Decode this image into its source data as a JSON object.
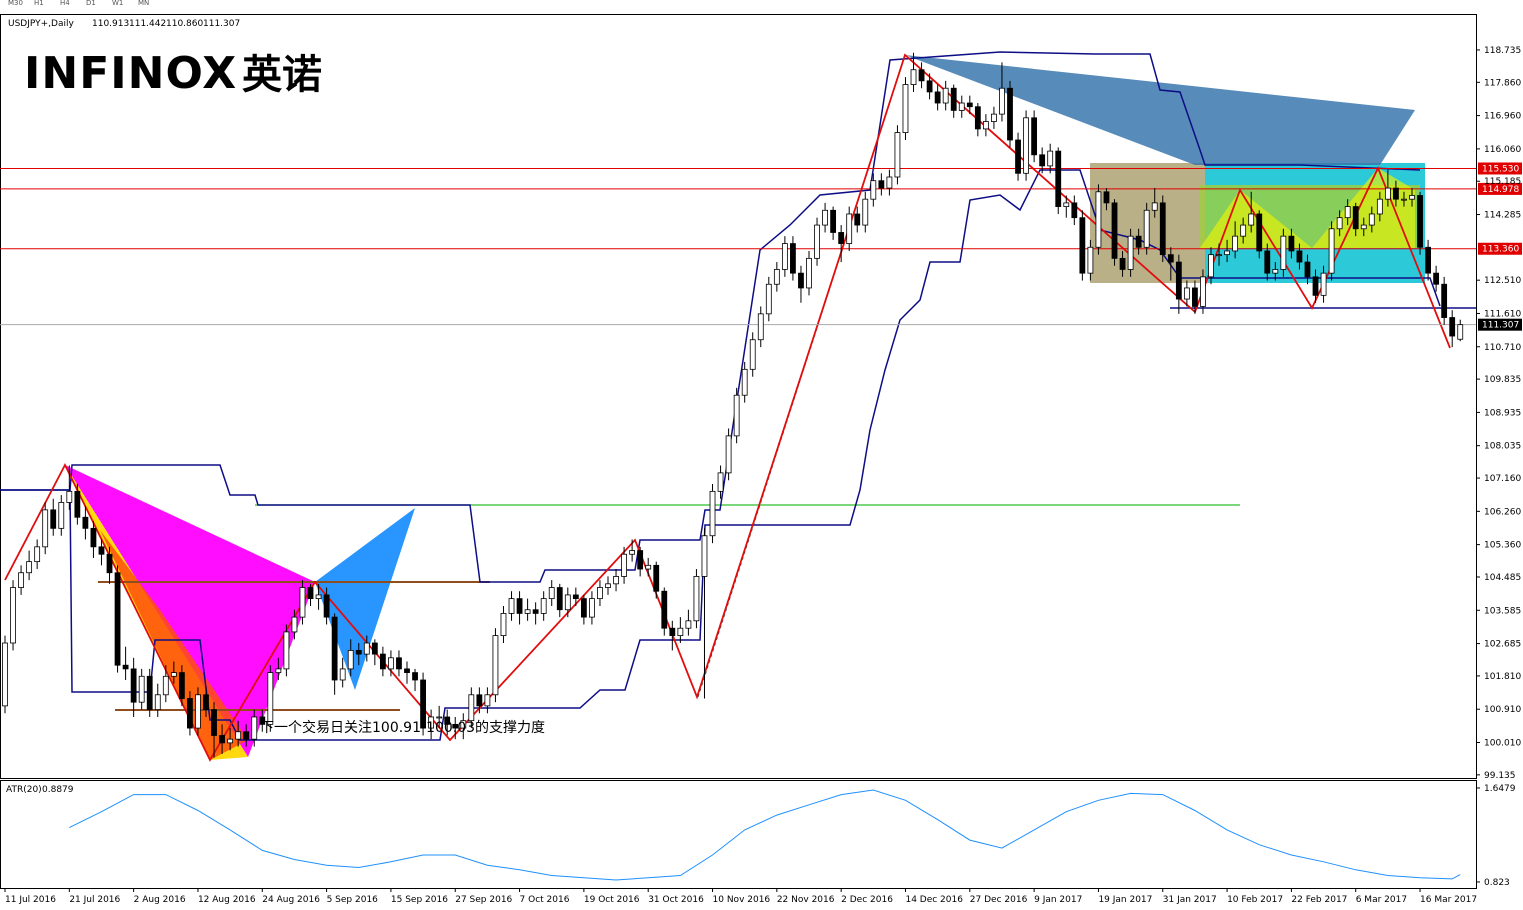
{
  "chart_data": {
    "type": "candlestick",
    "symbol": "USDJPY+,Daily",
    "ohlc_text": [
      "110.913",
      "111.442",
      "110.860",
      "111.307"
    ],
    "logo": "INFINOX",
    "logo_cn": "英诺",
    "timeframes": [
      "M30",
      "H1",
      "H4",
      "D1",
      "W1",
      "MN"
    ],
    "annotation": "下一个交易日关注100.91-100.03的支撑力度",
    "categories": [
      "11 Jul 2016",
      null,
      null,
      null,
      null,
      null,
      null,
      null,
      "21 Jul 2016",
      null,
      null,
      null,
      null,
      null,
      null,
      null,
      "2 Aug 2016",
      null,
      null,
      null,
      null,
      null,
      null,
      null,
      "12 Aug 2016",
      null,
      null,
      null,
      null,
      null,
      null,
      null,
      "24 Aug 2016",
      null,
      null,
      null,
      null,
      null,
      null,
      null,
      "5 Sep 2016",
      null,
      null,
      null,
      null,
      null,
      null,
      null,
      "15 Sep 2016",
      null,
      null,
      null,
      null,
      null,
      null,
      null,
      "27 Sep 2016",
      null,
      null,
      null,
      null,
      null,
      null,
      null,
      "7 Oct 2016",
      null,
      null,
      null,
      null,
      null,
      null,
      null,
      "19 Oct 2016",
      null,
      null,
      null,
      null,
      null,
      null,
      null,
      "31 Oct 2016",
      null,
      null,
      null,
      null,
      null,
      null,
      null,
      "10 Nov 2016",
      null,
      null,
      null,
      null,
      null,
      null,
      null,
      "22 Nov 2016",
      null,
      null,
      null,
      null,
      null,
      null,
      null,
      "2 Dec 2016",
      null,
      null,
      null,
      null,
      null,
      null,
      null,
      "14 Dec 2016",
      null,
      null,
      null,
      null,
      null,
      null,
      null,
      "27 Dec 2016",
      null,
      null,
      null,
      null,
      null,
      null,
      null,
      "9 Jan 2017",
      null,
      null,
      null,
      null,
      null,
      null,
      null,
      "19 Jan 2017",
      null,
      null,
      null,
      null,
      null,
      null,
      null,
      "31 Jan 2017",
      null,
      null,
      null,
      null,
      null,
      null,
      null,
      "10 Feb 2017",
      null,
      null,
      null,
      null,
      null,
      null,
      null,
      "22 Feb 2017",
      null,
      null,
      null,
      null,
      null,
      null,
      null,
      "6 Mar 2017",
      null,
      null,
      null,
      null,
      null,
      null,
      null,
      "16 Mar 2017",
      null,
      null,
      null,
      null,
      null
    ],
    "candles": [
      [
        101.0,
        102.9,
        100.8,
        102.7
      ],
      [
        102.7,
        104.4,
        102.5,
        104.2
      ],
      [
        104.2,
        104.8,
        104.0,
        104.6
      ],
      [
        104.6,
        105.2,
        104.4,
        104.9
      ],
      [
        104.9,
        105.5,
        104.7,
        105.3
      ],
      [
        105.3,
        106.5,
        105.1,
        106.3
      ],
      [
        106.3,
        106.6,
        105.6,
        105.8
      ],
      [
        105.8,
        106.7,
        105.6,
        106.5
      ],
      [
        106.5,
        107.5,
        106.3,
        106.8
      ],
      [
        106.8,
        107.0,
        105.9,
        106.1
      ],
      [
        106.1,
        106.4,
        105.5,
        105.8
      ],
      [
        105.8,
        106.0,
        105.0,
        105.3
      ],
      [
        105.3,
        105.5,
        104.8,
        105.1
      ],
      [
        105.1,
        105.3,
        104.3,
        104.6
      ],
      [
        104.6,
        104.8,
        101.9,
        102.1
      ],
      [
        102.1,
        102.6,
        101.7,
        102.0
      ],
      [
        102.0,
        102.3,
        100.7,
        101.1
      ],
      [
        101.1,
        102.0,
        100.9,
        101.8
      ],
      [
        101.8,
        102.0,
        100.7,
        100.9
      ],
      [
        100.9,
        101.6,
        100.7,
        101.3
      ],
      [
        101.3,
        102.1,
        101.1,
        101.8
      ],
      [
        101.8,
        102.2,
        101.6,
        101.9
      ],
      [
        101.9,
        102.1,
        101.0,
        101.2
      ],
      [
        101.2,
        101.4,
        100.2,
        100.4
      ],
      [
        100.4,
        101.5,
        100.2,
        101.3
      ],
      [
        101.3,
        101.5,
        100.7,
        100.9
      ],
      [
        100.9,
        101.1,
        99.6,
        100.2
      ],
      [
        100.2,
        100.5,
        99.7,
        100.0
      ],
      [
        100.0,
        100.4,
        99.8,
        100.1
      ],
      [
        100.1,
        100.6,
        99.9,
        100.3
      ],
      [
        100.3,
        100.5,
        99.9,
        100.1
      ],
      [
        100.1,
        100.9,
        99.9,
        100.7
      ],
      [
        100.7,
        100.9,
        100.3,
        100.5
      ],
      [
        100.5,
        102.1,
        100.3,
        101.9
      ],
      [
        101.9,
        102.3,
        101.7,
        102.0
      ],
      [
        102.0,
        103.2,
        101.8,
        103.0
      ],
      [
        103.0,
        103.6,
        102.8,
        103.4
      ],
      [
        103.4,
        104.4,
        103.2,
        104.2
      ],
      [
        104.2,
        104.3,
        103.7,
        103.9
      ],
      [
        103.9,
        104.3,
        103.6,
        104.0
      ],
      [
        104.0,
        104.2,
        103.2,
        103.4
      ],
      [
        103.4,
        103.5,
        101.3,
        101.7
      ],
      [
        101.7,
        102.3,
        101.5,
        102.0
      ],
      [
        102.0,
        102.8,
        101.8,
        102.5
      ],
      [
        102.5,
        102.7,
        102.1,
        102.4
      ],
      [
        102.4,
        102.9,
        102.2,
        102.7
      ],
      [
        102.7,
        102.8,
        102.1,
        102.4
      ],
      [
        102.4,
        102.6,
        101.8,
        102.0
      ],
      [
        102.0,
        102.5,
        101.8,
        102.3
      ],
      [
        102.3,
        102.5,
        101.8,
        102.0
      ],
      [
        102.0,
        102.2,
        101.6,
        101.9
      ],
      [
        101.9,
        102.0,
        101.4,
        101.7
      ],
      [
        101.7,
        101.9,
        100.2,
        100.4
      ],
      [
        100.4,
        100.9,
        100.1,
        100.7
      ],
      [
        100.7,
        101.0,
        100.4,
        100.7
      ],
      [
        100.7,
        100.9,
        100.2,
        100.5
      ],
      [
        100.5,
        100.7,
        100.1,
        100.4
      ],
      [
        100.4,
        100.8,
        100.1,
        100.6
      ],
      [
        100.6,
        101.5,
        100.4,
        101.3
      ],
      [
        101.3,
        101.5,
        100.8,
        101.0
      ],
      [
        101.0,
        101.5,
        100.8,
        101.3
      ],
      [
        101.3,
        103.1,
        101.1,
        102.9
      ],
      [
        102.9,
        103.7,
        102.7,
        103.5
      ],
      [
        103.5,
        104.1,
        103.3,
        103.9
      ],
      [
        103.9,
        104.1,
        103.2,
        103.5
      ],
      [
        103.5,
        103.9,
        103.3,
        103.6
      ],
      [
        103.6,
        103.8,
        103.2,
        103.5
      ],
      [
        103.5,
        104.1,
        103.3,
        103.9
      ],
      [
        103.9,
        104.4,
        103.7,
        104.2
      ],
      [
        104.2,
        104.3,
        103.4,
        103.6
      ],
      [
        103.6,
        104.2,
        103.4,
        104.0
      ],
      [
        104.0,
        104.2,
        103.7,
        103.9
      ],
      [
        103.9,
        104.0,
        103.2,
        103.4
      ],
      [
        103.4,
        104.1,
        103.2,
        103.9
      ],
      [
        103.9,
        104.4,
        103.7,
        104.2
      ],
      [
        104.2,
        104.5,
        104.0,
        104.3
      ],
      [
        104.3,
        104.7,
        104.1,
        104.5
      ],
      [
        104.5,
        105.3,
        104.3,
        105.1
      ],
      [
        105.1,
        105.5,
        104.9,
        105.2
      ],
      [
        105.2,
        105.3,
        104.5,
        104.7
      ],
      [
        104.7,
        105.0,
        104.5,
        104.8
      ],
      [
        104.8,
        104.9,
        103.9,
        104.1
      ],
      [
        104.1,
        104.2,
        102.9,
        103.1
      ],
      [
        103.1,
        103.3,
        102.5,
        102.9
      ],
      [
        102.9,
        103.4,
        102.7,
        103.1
      ],
      [
        103.1,
        103.6,
        102.9,
        103.3
      ],
      [
        103.3,
        104.7,
        103.1,
        104.5
      ],
      [
        104.5,
        105.8,
        101.2,
        105.6
      ],
      [
        105.6,
        107.0,
        105.4,
        106.8
      ],
      [
        106.8,
        107.5,
        106.6,
        107.3
      ],
      [
        107.3,
        108.5,
        107.1,
        108.3
      ],
      [
        108.3,
        109.6,
        108.1,
        109.4
      ],
      [
        109.4,
        110.3,
        109.2,
        110.1
      ],
      [
        110.1,
        111.1,
        109.9,
        110.9
      ],
      [
        110.9,
        111.8,
        110.7,
        111.6
      ],
      [
        111.6,
        112.6,
        111.4,
        112.4
      ],
      [
        112.4,
        113.0,
        112.2,
        112.8
      ],
      [
        112.8,
        113.7,
        112.6,
        113.5
      ],
      [
        113.5,
        113.7,
        112.5,
        112.7
      ],
      [
        112.7,
        112.9,
        111.9,
        112.3
      ],
      [
        112.3,
        113.3,
        112.1,
        113.1
      ],
      [
        113.1,
        114.2,
        112.9,
        114.0
      ],
      [
        114.0,
        114.6,
        113.8,
        114.4
      ],
      [
        114.4,
        114.5,
        113.6,
        113.8
      ],
      [
        113.8,
        114.0,
        113.0,
        113.5
      ],
      [
        113.5,
        114.5,
        113.3,
        114.3
      ],
      [
        114.3,
        114.5,
        113.8,
        114.0
      ],
      [
        114.0,
        114.9,
        113.8,
        114.7
      ],
      [
        114.7,
        115.4,
        114.5,
        115.2
      ],
      [
        115.2,
        115.4,
        114.8,
        115.0
      ],
      [
        115.0,
        115.5,
        114.8,
        115.3
      ],
      [
        115.3,
        116.7,
        115.1,
        116.5
      ],
      [
        116.5,
        118.0,
        116.3,
        117.8
      ],
      [
        117.8,
        118.66,
        117.6,
        118.2
      ],
      [
        118.2,
        118.4,
        117.7,
        117.9
      ],
      [
        117.9,
        118.1,
        117.4,
        117.6
      ],
      [
        117.6,
        117.8,
        117.1,
        117.3
      ],
      [
        117.3,
        117.9,
        117.1,
        117.7
      ],
      [
        117.7,
        117.8,
        116.9,
        117.1
      ],
      [
        117.1,
        117.5,
        116.9,
        117.3
      ],
      [
        117.3,
        117.5,
        117.0,
        117.2
      ],
      [
        117.2,
        117.3,
        116.4,
        116.6
      ],
      [
        116.6,
        117.0,
        116.4,
        116.8
      ],
      [
        116.8,
        117.2,
        116.6,
        117.0
      ],
      [
        117.0,
        118.4,
        116.8,
        117.7
      ],
      [
        117.7,
        117.9,
        116.1,
        116.3
      ],
      [
        116.3,
        116.5,
        115.2,
        115.4
      ],
      [
        115.4,
        117.1,
        115.2,
        116.9
      ],
      [
        116.9,
        117.1,
        115.7,
        115.9
      ],
      [
        115.9,
        116.1,
        115.4,
        115.6
      ],
      [
        115.6,
        116.2,
        115.4,
        116.0
      ],
      [
        116.0,
        116.1,
        114.3,
        114.5
      ],
      [
        114.5,
        114.8,
        114.2,
        114.6
      ],
      [
        114.6,
        114.8,
        114.0,
        114.2
      ],
      [
        114.2,
        114.4,
        112.5,
        112.7
      ],
      [
        112.7,
        113.6,
        112.5,
        113.4
      ],
      [
        113.4,
        115.1,
        113.2,
        114.9
      ],
      [
        114.9,
        115.0,
        114.4,
        114.6
      ],
      [
        114.6,
        114.7,
        112.9,
        113.1
      ],
      [
        113.1,
        113.3,
        112.6,
        112.8
      ],
      [
        112.8,
        113.9,
        112.6,
        113.7
      ],
      [
        113.7,
        113.9,
        113.2,
        113.4
      ],
      [
        113.4,
        114.6,
        113.2,
        114.4
      ],
      [
        114.4,
        115.0,
        114.2,
        114.6
      ],
      [
        114.6,
        114.8,
        113.0,
        113.2
      ],
      [
        113.2,
        113.4,
        112.5,
        113.0
      ],
      [
        113.0,
        113.2,
        111.6,
        112.0
      ],
      [
        112.0,
        112.5,
        111.8,
        112.3
      ],
      [
        112.3,
        112.5,
        111.6,
        111.8
      ],
      [
        111.8,
        112.8,
        111.6,
        112.6
      ],
      [
        112.6,
        113.4,
        112.4,
        113.2
      ],
      [
        113.2,
        113.5,
        112.9,
        113.2
      ],
      [
        113.2,
        113.6,
        113.0,
        113.3
      ],
      [
        113.3,
        114.1,
        113.1,
        113.7
      ],
      [
        113.7,
        114.2,
        113.5,
        114.0
      ],
      [
        114.0,
        114.9,
        113.8,
        114.3
      ],
      [
        114.3,
        114.4,
        113.1,
        113.3
      ],
      [
        113.3,
        113.5,
        112.5,
        112.7
      ],
      [
        112.7,
        113.0,
        112.5,
        112.8
      ],
      [
        112.8,
        113.9,
        112.6,
        113.7
      ],
      [
        113.7,
        113.9,
        113.1,
        113.3
      ],
      [
        113.3,
        113.5,
        112.8,
        113.0
      ],
      [
        113.0,
        113.2,
        112.4,
        112.6
      ],
      [
        112.6,
        112.8,
        111.9,
        112.1
      ],
      [
        112.1,
        112.9,
        111.9,
        112.7
      ],
      [
        112.7,
        114.1,
        112.5,
        113.9
      ],
      [
        113.9,
        114.4,
        113.7,
        114.2
      ],
      [
        114.2,
        114.7,
        114.0,
        114.5
      ],
      [
        114.5,
        114.6,
        113.7,
        113.9
      ],
      [
        113.9,
        114.2,
        113.7,
        114.0
      ],
      [
        114.0,
        114.5,
        113.8,
        114.3
      ],
      [
        114.3,
        114.9,
        114.1,
        114.7
      ],
      [
        114.7,
        115.5,
        114.5,
        115.0
      ],
      [
        115.0,
        115.2,
        114.5,
        114.7
      ],
      [
        114.7,
        114.9,
        114.5,
        114.7
      ],
      [
        114.7,
        115.0,
        114.5,
        114.8
      ],
      [
        114.8,
        114.9,
        113.2,
        113.4
      ],
      [
        113.4,
        113.6,
        112.5,
        112.7
      ],
      [
        112.7,
        112.9,
        112.2,
        112.4
      ],
      [
        112.4,
        112.6,
        111.3,
        111.5
      ],
      [
        111.5,
        111.7,
        110.7,
        111.0
      ],
      [
        110.913,
        111.442,
        110.86,
        111.307
      ]
    ],
    "ylim": [
      99.05,
      119.68
    ],
    "yticks": [
      118.735,
      {
        "value": 117.86,
        "label": "117.860"
      },
      {
        "value": 116.96,
        "label": "116.960"
      },
      {
        "value": 116.06,
        "label": "116.060"
      },
      115.185,
      114.285,
      {
        "value": 112.51,
        "label": "112.510"
      },
      {
        "value": 111.61,
        "label": "111.610"
      },
      {
        "value": 110.71,
        "label": "110.710"
      },
      109.835,
      108.935,
      108.035,
      {
        "value": 107.16,
        "label": "107.160"
      },
      {
        "value": 106.26,
        "label": "106.260"
      },
      {
        "value": 105.36,
        "label": "105.360"
      },
      104.485,
      103.585,
      102.685,
      {
        "value": 101.81,
        "label": "101.810"
      },
      {
        "value": 100.91,
        "label": "100.910"
      },
      {
        "value": 100.01,
        "label": "100.010"
      },
      99.135
    ],
    "levels": [
      {
        "value": 115.53,
        "label": "115.530",
        "color": "#e00000"
      },
      {
        "value": 114.978,
        "label": "114.978",
        "color": "#e00000"
      },
      {
        "value": 113.36,
        "label": "113.360",
        "color": "#e00000"
      }
    ],
    "current_price": 111.307,
    "atr": {
      "name": "ATR(20)",
      "color": "#1e90ff",
      "x": [
        8,
        12,
        16,
        20,
        24,
        28,
        32,
        36,
        40,
        44,
        48,
        52,
        56,
        60,
        64,
        68,
        72,
        76,
        80,
        84,
        88,
        92,
        96,
        100,
        104,
        108,
        112,
        116,
        120,
        124,
        128,
        132,
        136,
        140,
        144,
        148,
        152,
        156,
        160,
        164,
        168,
        172,
        176,
        180,
        181
      ],
      "values": [
        1.3,
        1.44,
        1.59,
        1.59,
        1.45,
        1.28,
        1.1,
        1.02,
        0.97,
        0.95,
        1.0,
        1.06,
        1.06,
        0.97,
        0.93,
        0.88,
        0.86,
        0.84,
        0.86,
        0.88,
        1.06,
        1.28,
        1.41,
        1.5,
        1.59,
        1.63,
        1.54,
        1.37,
        1.19,
        1.12,
        1.28,
        1.44,
        1.54,
        1.6,
        1.59,
        1.45,
        1.28,
        1.15,
        1.06,
        1.0,
        0.93,
        0.88,
        0.86,
        0.85,
        0.8879
      ],
      "ylim": [
        0.77,
        1.709
      ],
      "yticks": [
        1.6479,
        0.823
      ]
    }
  }
}
